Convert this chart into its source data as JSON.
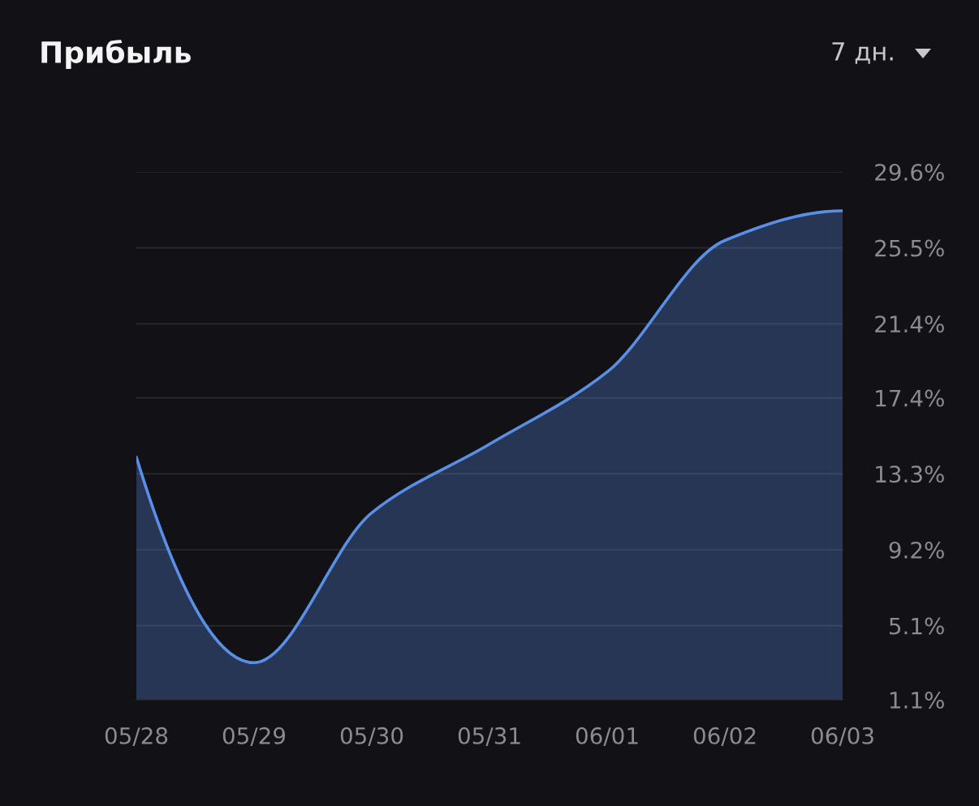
{
  "chart_data": {
    "type": "area",
    "title": "Прибыль",
    "annotations": [
      "7 дн."
    ],
    "categories": [
      "05/28",
      "05/29",
      "05/30",
      "05/31",
      "06/01",
      "06/02",
      "06/03"
    ],
    "values": [
      14.2,
      3.1,
      11.2,
      14.9,
      18.8,
      25.9,
      27.5
    ],
    "color": "#5a8fe6",
    "ylim": [
      1.1,
      29.6
    ],
    "yticks": [
      {
        "value": 1.1,
        "label": "1.1%"
      },
      {
        "value": 5.1,
        "label": "5.1%"
      },
      {
        "value": 9.2,
        "label": "9.2%"
      },
      {
        "value": 13.3,
        "label": "13.3%"
      },
      {
        "value": 17.4,
        "label": "17.4%"
      },
      {
        "value": 21.4,
        "label": "21.4%"
      },
      {
        "value": 25.5,
        "label": "25.5%"
      },
      {
        "value": 29.6,
        "label": "29.6%"
      }
    ],
    "grid": "y",
    "line_style": "solid"
  }
}
